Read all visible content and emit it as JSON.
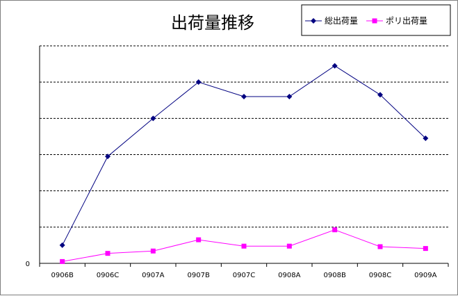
{
  "chart_data": {
    "type": "line",
    "title": "出荷量推移",
    "categories": [
      "0906B",
      "0906C",
      "0907A",
      "0907B",
      "0907C",
      "0908A",
      "0908B",
      "0908C",
      "0909A"
    ],
    "series": [
      {
        "name": "総出荷量",
        "color": "#000080",
        "marker": "diamond",
        "values": [
          1.0,
          5.9,
          8.0,
          10.0,
          9.2,
          9.2,
          10.9,
          9.3,
          6.9
        ]
      },
      {
        "name": "ポリ出荷量",
        "color": "#ff00ff",
        "marker": "square",
        "values": [
          0.1,
          0.55,
          0.68,
          1.3,
          0.95,
          0.95,
          1.85,
          0.92,
          0.82
        ]
      }
    ],
    "y_tick_labels": [
      "0"
    ],
    "ylim": [
      0,
      12
    ],
    "grid": true,
    "legend_position": "top-right"
  }
}
